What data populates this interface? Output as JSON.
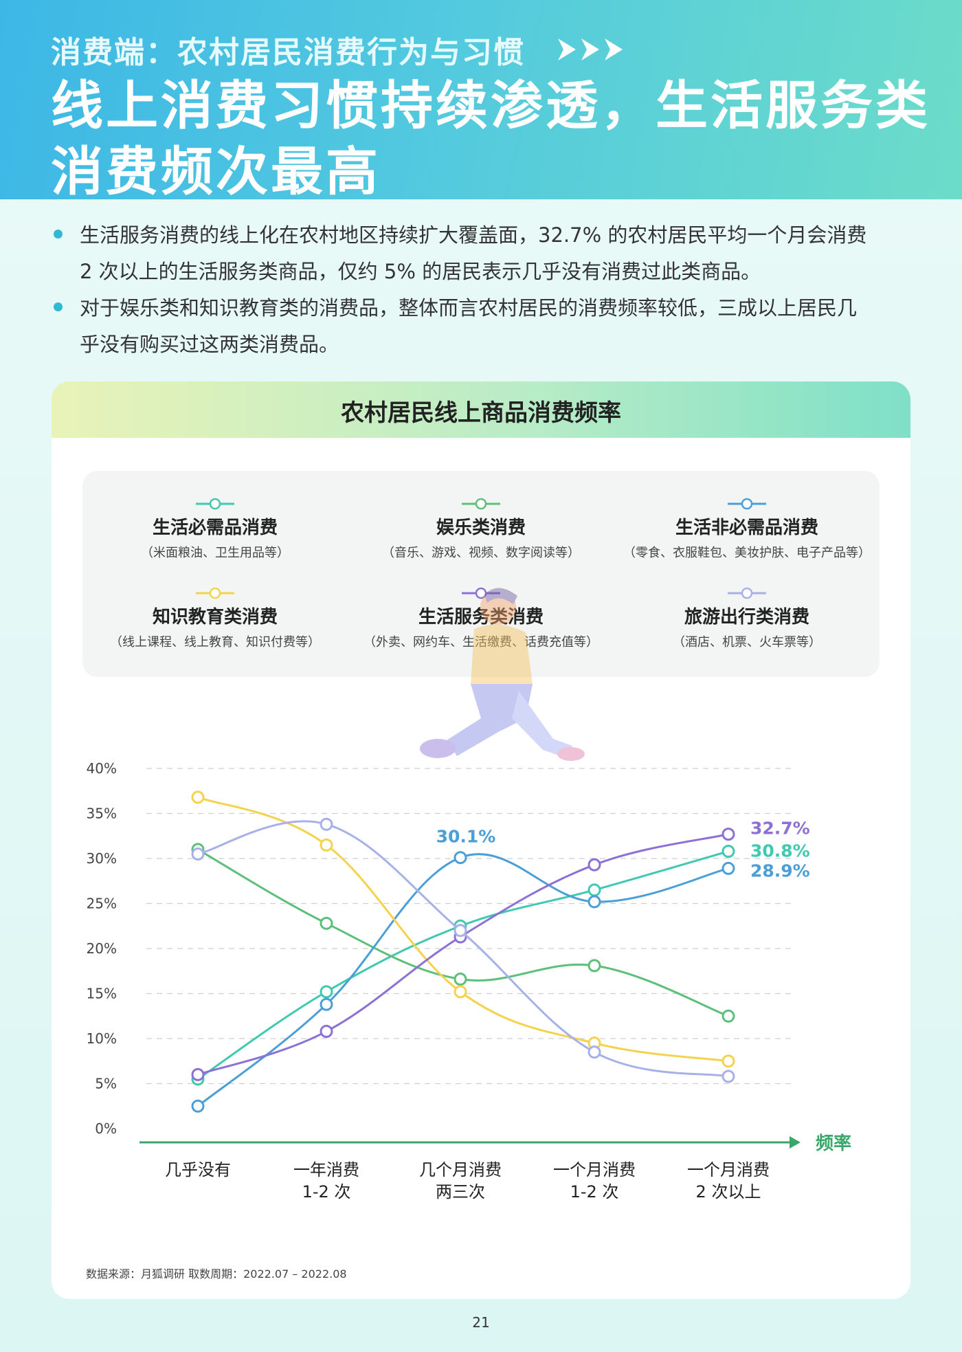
{
  "header": {
    "kicker": "消费端：农村居民消费行为与习惯",
    "headline_line1": "线上消费习惯持续渗透，生活服务类",
    "headline_line2": "消费频次最高"
  },
  "bullets": [
    {
      "line1": "生活服务消费的线上化在农村地区持续扩大覆盖面，32.7% 的农村居民平均一个月会消费",
      "line2": "2 次以上的生活服务类商品，仅约 5% 的居民表示几乎没有消费过此类商品。"
    },
    {
      "line1": "对于娱乐类和知识教育类的消费品，整体而言农村居民的消费频率较低，三成以上居民几",
      "line2": "乎没有购买过这两类消费品。"
    }
  ],
  "colors": {
    "necessity": "#3ec9b0",
    "entertainment": "#5cbf7a",
    "nonnecessity": "#4a9fd8",
    "education": "#f5d24e",
    "service": "#8b70d6",
    "travel": "#a8b0ea",
    "axis": "#3aa66a"
  },
  "chart_data": {
    "type": "line",
    "title": "农村居民线上商品消费频率",
    "xlabel": "频率",
    "categories": [
      [
        "几乎没有"
      ],
      [
        "一年消费",
        "1-2 次"
      ],
      [
        "几个月消费",
        "两三次"
      ],
      [
        "一个月消费",
        "1-2 次"
      ],
      [
        "一个月消费",
        "2 次以上"
      ]
    ],
    "y_ticks": [
      "0%",
      "5%",
      "10%",
      "15%",
      "20%",
      "25%",
      "30%",
      "35%",
      "40%"
    ],
    "ylim": [
      0,
      40
    ],
    "grid": true,
    "series": [
      {
        "key": "necessity",
        "name": "生活必需品消费",
        "sub": "（米面粮油、卫生用品等）",
        "values": [
          5.5,
          15.2,
          22.5,
          26.5,
          30.8
        ]
      },
      {
        "key": "entertainment",
        "name": "娱乐类消费",
        "sub": "（音乐、游戏、视频、数字阅读等）",
        "values": [
          31.0,
          22.8,
          16.6,
          18.1,
          12.5
        ]
      },
      {
        "key": "nonnecessity",
        "name": "生活非必需品消费",
        "sub": "（零食、衣服鞋包、美妆护肤、电子产品等）",
        "values": [
          2.5,
          13.8,
          30.1,
          25.2,
          28.9
        ]
      },
      {
        "key": "education",
        "name": "知识教育类消费",
        "sub": "（线上课程、线上教育、知识付费等）",
        "values": [
          36.8,
          31.5,
          15.2,
          9.5,
          7.5
        ]
      },
      {
        "key": "service",
        "name": "生活服务类消费",
        "sub": "（外卖、网约车、生活缴费、话费充值等）",
        "values": [
          6.0,
          10.8,
          21.3,
          29.3,
          32.7
        ]
      },
      {
        "key": "travel",
        "name": "旅游出行类消费",
        "sub": "（酒店、机票、火车票等）",
        "values": [
          30.5,
          33.8,
          22.0,
          8.5,
          5.8
        ]
      }
    ],
    "annotations": [
      {
        "series": "nonnecessity",
        "point": 2,
        "text": "30.1%"
      },
      {
        "series": "service",
        "point": 4,
        "text": "32.7%"
      },
      {
        "series": "necessity",
        "point": 4,
        "text": "30.8%"
      },
      {
        "series": "nonnecessity",
        "point": 4,
        "text": "28.9%"
      }
    ]
  },
  "footer": {
    "source": "数据来源：月狐调研   取数周期：2022.07 – 2022.08",
    "page": "21"
  }
}
